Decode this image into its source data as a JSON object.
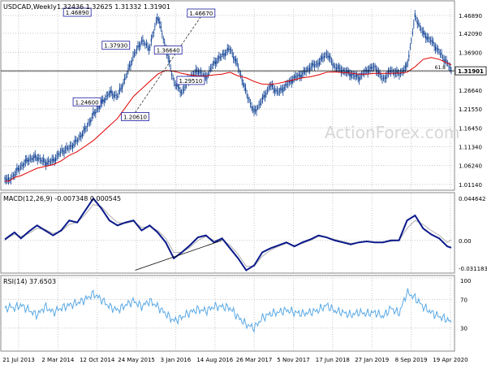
{
  "chart_data": [
    {
      "type": "candlestick",
      "panel": "price",
      "title": "USDCAD,Weekly",
      "ohlc_label": "1.32436 1.32625 1.31332 1.31901",
      "current_price": 1.31901,
      "current_price_label": "1.31901",
      "ylim": [
        1.0,
        1.48
      ],
      "y_ticks": [
        1.0114,
        1.0624,
        1.1134,
        1.1645,
        1.2155,
        1.2664,
        1.3159,
        1.369,
        1.4209,
        1.4689
      ],
      "y_tick_labels": [
        "1.01140",
        "1.06240",
        "1.11340",
        "1.16450",
        "1.21550",
        "1.26640",
        "1.31590",
        "1.36900",
        "1.42090",
        "1.46890"
      ],
      "x": [
        0,
        5,
        12,
        20,
        30,
        40,
        50,
        60,
        70,
        80,
        90,
        100,
        110,
        120,
        130,
        140,
        150,
        160,
        170,
        180,
        190,
        200,
        210,
        220,
        230,
        240,
        250,
        260,
        270,
        280,
        290,
        300,
        310,
        320,
        330,
        340,
        350,
        360,
        370,
        380,
        390,
        400,
        410,
        420,
        430,
        440,
        450,
        460,
        470,
        480,
        490,
        500,
        510,
        520,
        530,
        540,
        550,
        555
      ],
      "series": [
        {
          "values": [
            1.03,
            1.02,
            1.04,
            1.06,
            1.08,
            1.085,
            1.07,
            1.075,
            1.1,
            1.11,
            1.13,
            1.16,
            1.2,
            1.23,
            1.26,
            1.25,
            1.3,
            1.36,
            1.4,
            1.38,
            1.4689,
            1.38,
            1.29,
            1.26,
            1.3,
            1.32,
            1.3,
            1.34,
            1.36,
            1.3793,
            1.33,
            1.26,
            1.2061,
            1.24,
            1.28,
            1.26,
            1.28,
            1.3,
            1.31,
            1.33,
            1.34,
            1.3664,
            1.33,
            1.32,
            1.31,
            1.3,
            1.32,
            1.33,
            1.295,
            1.32,
            1.31,
            1.33,
            1.4667,
            1.42,
            1.4,
            1.37,
            1.34,
            1.319
          ]
        },
        {
          "name": "MA",
          "values": [
            1.02,
            1.02,
            1.03,
            1.035,
            1.045,
            1.055,
            1.06,
            1.065,
            1.075,
            1.09,
            1.1,
            1.115,
            1.13,
            1.15,
            1.17,
            1.19,
            1.22,
            1.25,
            1.27,
            1.29,
            1.31,
            1.32,
            1.318,
            1.312,
            1.308,
            1.305,
            1.305,
            1.308,
            1.31,
            1.315,
            1.305,
            1.3,
            1.29,
            1.283,
            1.282,
            1.285,
            1.29,
            1.295,
            1.3,
            1.303,
            1.308,
            1.315,
            1.316,
            1.314,
            1.313,
            1.31,
            1.31,
            1.312,
            1.312,
            1.312,
            1.313,
            1.315,
            1.33,
            1.35,
            1.355,
            1.35,
            1.34,
            1.335
          ]
        }
      ],
      "annotations": [
        {
          "x": 90,
          "y": 1.4689,
          "text": "1.46890"
        },
        {
          "x": 102,
          "y": 1.246,
          "text": "1.24600"
        },
        {
          "x": 138,
          "y": 1.3793,
          "text": "1.37930"
        },
        {
          "x": 162,
          "y": 1.2061,
          "text": "1.20610"
        },
        {
          "x": 203,
          "y": 1.3664,
          "text": "1.36640"
        },
        {
          "x": 244,
          "y": 1.4667,
          "text": "1.46670"
        },
        {
          "x": 231,
          "y": 1.2951,
          "text": "1.29510"
        }
      ],
      "hline": 1.319,
      "hline_label": "61.8",
      "trendline": {
        "x": [
          162,
          244
        ],
        "y": [
          1.2061,
          1.4667
        ]
      }
    },
    {
      "type": "line",
      "panel": "macd",
      "title": "MACD(12,26,9) -0.007348 0.000545",
      "ylim": [
        -0.031183,
        0.044642
      ],
      "y_tick_labels": [
        "0.044642",
        "0.00",
        "-0.031183"
      ],
      "series": [
        {
          "name": "MACD",
          "values": [
            0.001,
            0.004,
            0.008,
            0.002,
            0.009,
            0.015,
            0.01,
            0.005,
            0.01,
            0.02,
            0.018,
            0.03,
            0.042,
            0.032,
            0.02,
            0.015,
            0.018,
            0.02,
            0.01,
            0.015,
            0.008,
            -0.002,
            -0.018,
            -0.012,
            -0.005,
            0.003,
            0.005,
            -0.002,
            0.002,
            -0.008,
            -0.018,
            -0.03,
            -0.025,
            -0.012,
            -0.008,
            -0.005,
            -0.002,
            -0.006,
            -0.002,
            0.001,
            0.005,
            0.003,
            0.0,
            -0.002,
            -0.004,
            -0.002,
            -0.001,
            -0.002,
            -0.002,
            0.0,
            0.0,
            0.02,
            0.025,
            0.012,
            0.006,
            0.002,
            -0.006,
            -0.007348
          ]
        },
        {
          "name": "Signal",
          "values": [
            0.0,
            0.003,
            0.006,
            0.004,
            0.007,
            0.012,
            0.011,
            0.007,
            0.009,
            0.016,
            0.018,
            0.026,
            0.036,
            0.034,
            0.025,
            0.018,
            0.017,
            0.019,
            0.013,
            0.014,
            0.01,
            0.002,
            -0.012,
            -0.012,
            -0.007,
            0.0,
            0.004,
            0.0,
            0.001,
            -0.005,
            -0.014,
            -0.026,
            -0.026,
            -0.016,
            -0.01,
            -0.006,
            -0.003,
            -0.005,
            -0.003,
            0.0,
            0.004,
            0.003,
            0.001,
            -0.001,
            -0.003,
            -0.002,
            -0.001,
            -0.002,
            -0.002,
            -0.001,
            0.0,
            0.012,
            0.02,
            0.016,
            0.01,
            0.005,
            -0.002,
            0.000545
          ]
        }
      ],
      "trendline": {
        "x": [
          162,
          270
        ],
        "y": [
          -0.03,
          0.0
        ]
      }
    },
    {
      "type": "line",
      "panel": "rsi",
      "title": "RSI(14) 37.6503",
      "ylim": [
        0,
        100
      ],
      "y_ticks": [
        30,
        70,
        100
      ],
      "y_tick_labels": [
        "30",
        "70",
        "100"
      ],
      "series": [
        {
          "name": "RSI",
          "values": [
            55,
            60,
            58,
            62,
            55,
            48,
            60,
            52,
            58,
            62,
            65,
            70,
            78,
            70,
            60,
            55,
            62,
            68,
            60,
            68,
            60,
            50,
            40,
            45,
            52,
            56,
            54,
            60,
            60,
            58,
            45,
            35,
            30,
            44,
            50,
            52,
            55,
            52,
            50,
            52,
            55,
            62,
            54,
            52,
            48,
            52,
            50,
            52,
            46,
            58,
            50,
            80,
            72,
            60,
            52,
            46,
            42,
            37.65
          ]
        }
      ]
    }
  ],
  "x_axis_labels": [
    "21 Jul 2013",
    "2 Mar 2014",
    "12 Oct 2014",
    "24 May 2015",
    "3 Jan 2016",
    "14 Aug 2016",
    "26 Mar 2017",
    "5 Nov 2017",
    "17 Jun 2018",
    "27 Jan 2019",
    "8 Sep 2019",
    "19 Apr 2020"
  ],
  "watermark": "ActionForex.com",
  "colors": {
    "candle": "#0a3d91",
    "ma": "#e00000",
    "macd": "#0b1a8a",
    "signal": "#b0b0b0",
    "rsi": "#5aa9e6",
    "grid": "#c8c8c8",
    "box_border": "#1a1aa0"
  }
}
